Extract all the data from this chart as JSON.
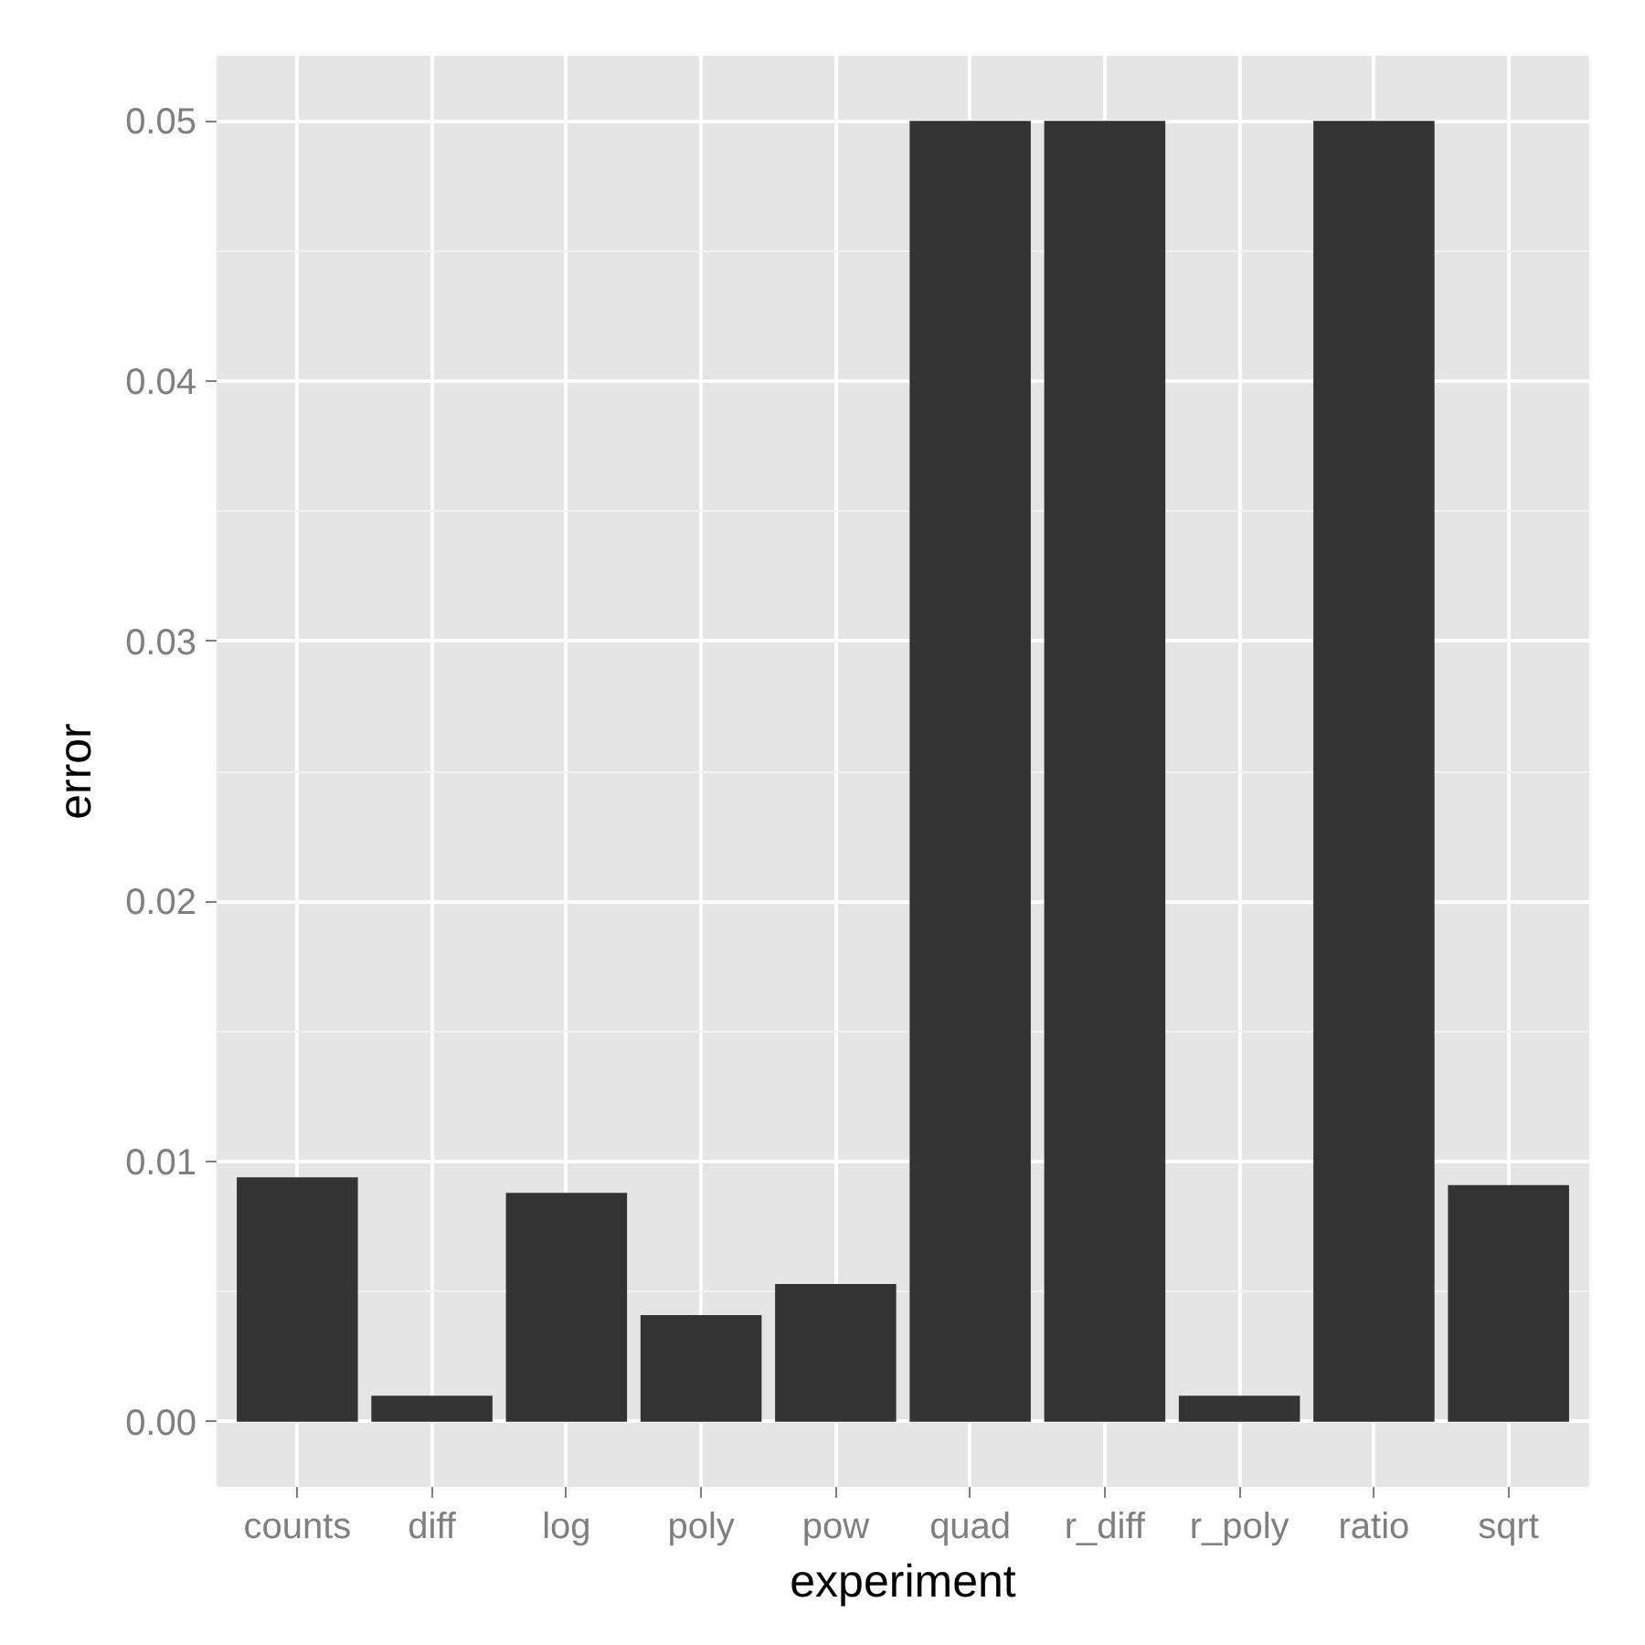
{
  "chart_data": {
    "type": "bar",
    "xlabel": "experiment",
    "ylabel": "error",
    "categories": [
      "counts",
      "diff",
      "log",
      "poly",
      "pow",
      "quad",
      "r_diff",
      "r_poly",
      "ratio",
      "sqrt"
    ],
    "values": [
      0.0094,
      0.001,
      0.0088,
      0.0041,
      0.0053,
      0.05,
      0.05,
      0.001,
      0.05,
      0.0091
    ],
    "color": "#333333",
    "ylim": [
      -0.0025,
      0.0525
    ],
    "yticks": [
      {
        "value": 0,
        "label": "0.00"
      },
      {
        "value": 0.01,
        "label": "0.01"
      },
      {
        "value": 0.02,
        "label": "0.02"
      },
      {
        "value": 0.03,
        "label": "0.03"
      },
      {
        "value": 0.04,
        "label": "0.04"
      },
      {
        "value": 0.05,
        "label": "0.05"
      }
    ],
    "grid": true
  }
}
